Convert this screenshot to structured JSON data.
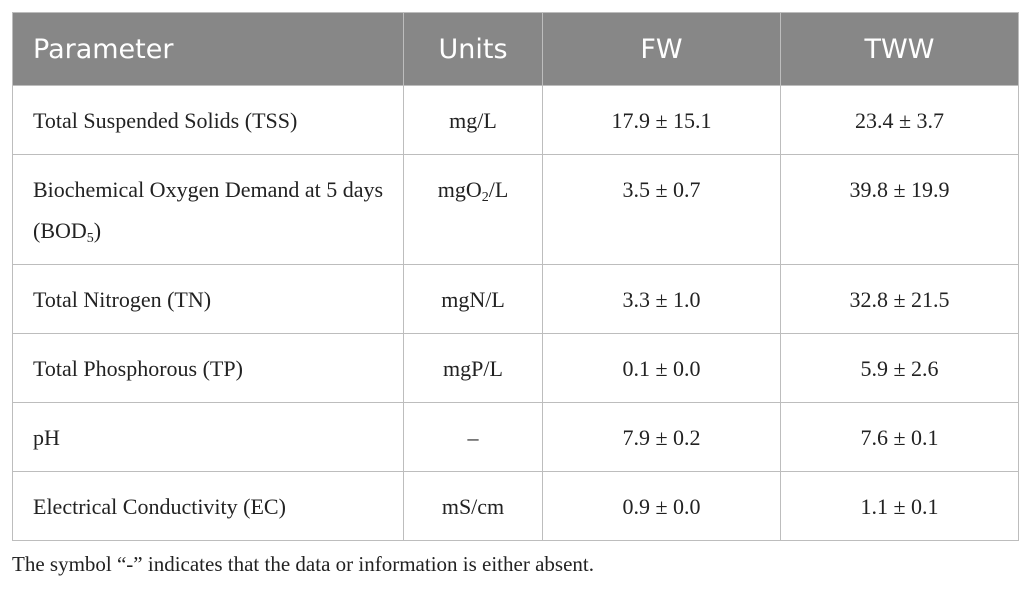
{
  "table": {
    "header": [
      "Parameter",
      "Units",
      "FW",
      "TWW"
    ],
    "rows": [
      [
        "Total Suspended Solids (TSS)",
        "mg/L",
        "17.9 ± 15.1",
        "23.4 ± 3.7"
      ],
      [
        [
          "Biochemical Oxygen Demand at 5 days (BOD",
          {
            "sub": "5"
          },
          ")"
        ],
        [
          "mgO",
          {
            "sub": "2"
          },
          "/L"
        ],
        "3.5 ± 0.7",
        "39.8 ± 19.9"
      ],
      [
        "Total Nitrogen (TN)",
        "mgN/L",
        "3.3 ± 1.0",
        "32.8 ± 21.5"
      ],
      [
        "Total Phosphorous (TP)",
        "mgP/L",
        "0.1 ± 0.0",
        "5.9 ± 2.6"
      ],
      [
        "pH",
        "–",
        "7.9 ± 0.2",
        "7.6 ± 0.1"
      ],
      [
        "Electrical Conductivity (EC)",
        "mS/cm",
        "0.9 ± 0.0",
        "1.1 ± 0.1"
      ]
    ]
  },
  "footnote": "The symbol “-” indicates that the data or information is either absent."
}
